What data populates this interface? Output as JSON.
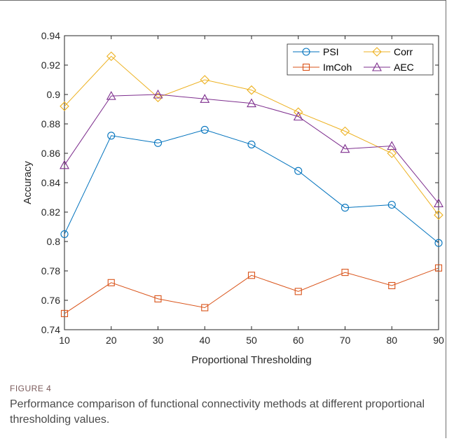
{
  "figure": {
    "label": "FIGURE 4",
    "caption": "Performance comparison of functional connectivity methods at different proportional thresholding values."
  },
  "chart_data": {
    "type": "line",
    "title": "",
    "xlabel": "Proportional Thresholding",
    "ylabel": "Accuracy",
    "x": [
      10,
      20,
      30,
      40,
      50,
      60,
      70,
      80,
      90
    ],
    "xlim": [
      10,
      90
    ],
    "ylim": [
      0.74,
      0.94
    ],
    "xticks": [
      "10",
      "20",
      "30",
      "40",
      "50",
      "60",
      "70",
      "80",
      "90"
    ],
    "yticks": [
      "0.74",
      "0.76",
      "0.78",
      "0.8",
      "0.82",
      "0.84",
      "0.86",
      "0.88",
      "0.9",
      "0.92",
      "0.94"
    ],
    "grid": false,
    "legend_position": "top-right",
    "series": [
      {
        "name": "PSI",
        "color": "#0072BD",
        "marker": "circle",
        "values": [
          0.805,
          0.872,
          0.867,
          0.876,
          0.866,
          0.848,
          0.823,
          0.825,
          0.799
        ]
      },
      {
        "name": "ImCoh",
        "color": "#D95319",
        "marker": "square",
        "values": [
          0.751,
          0.772,
          0.761,
          0.755,
          0.777,
          0.766,
          0.779,
          0.77,
          0.782
        ]
      },
      {
        "name": "Corr",
        "color": "#EDB120",
        "marker": "diamond",
        "values": [
          0.892,
          0.926,
          0.898,
          0.91,
          0.903,
          0.888,
          0.875,
          0.86,
          0.818
        ]
      },
      {
        "name": "AEC",
        "color": "#7E2F8E",
        "marker": "triangle",
        "values": [
          0.852,
          0.899,
          0.9,
          0.897,
          0.894,
          0.885,
          0.863,
          0.865,
          0.826
        ]
      }
    ]
  }
}
